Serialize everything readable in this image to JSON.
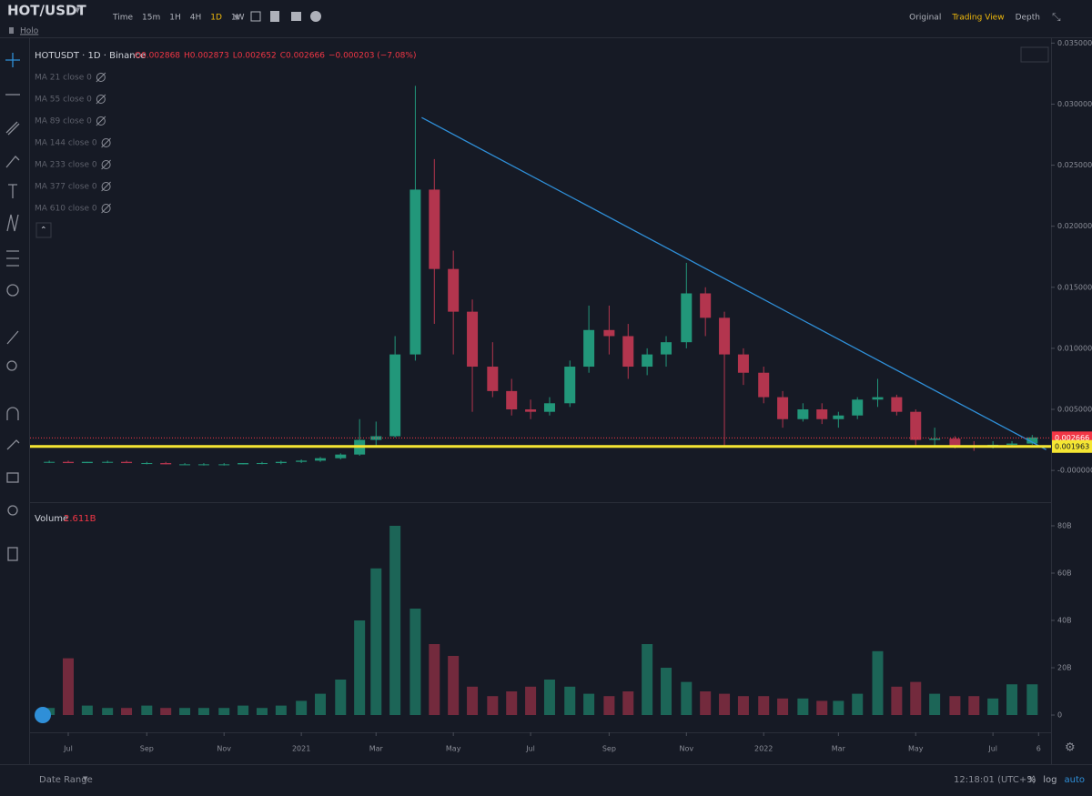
{
  "header": {
    "symbol": "HOT/USDT",
    "name": "Holo",
    "intervals": [
      "Time",
      "15m",
      "1H",
      "4H",
      "1D",
      "1W"
    ],
    "active_interval": 4,
    "views": [
      "Original",
      "Trading View",
      "Depth"
    ],
    "active_view": 1
  },
  "legend": {
    "title": "HOTUSDT · 1D · Binance",
    "ohlc": [
      "O0.002868",
      "H0.002873",
      "L0.002652",
      "C0.002666",
      "−0.000203 (−7.08%)"
    ],
    "indicators": [
      "MA 21 close 0",
      "MA 55 close 0",
      "MA 89 close 0",
      "MA 144 close 0",
      "MA 233 close 0",
      "MA 377 close 0",
      "MA 610 close 0"
    ]
  },
  "chart_data": {
    "type": "candlestick",
    "x": [
      "2020-06-16",
      "2020-07-01",
      "2020-07-16",
      "2020-08-01",
      "2020-08-16",
      "2020-09-01",
      "2020-09-16",
      "2020-10-01",
      "2020-10-16",
      "2020-11-01",
      "2020-11-16",
      "2020-12-01",
      "2020-12-16",
      "2021-01-01",
      "2021-01-16",
      "2021-02-01",
      "2021-02-16",
      "2021-03-01",
      "2021-03-16",
      "2021-04-01",
      "2021-04-16",
      "2021-05-01",
      "2021-05-16",
      "2021-06-01",
      "2021-06-16",
      "2021-07-01",
      "2021-07-16",
      "2021-08-01",
      "2021-08-16",
      "2021-09-01",
      "2021-09-16",
      "2021-10-01",
      "2021-10-16",
      "2021-11-01",
      "2021-11-16",
      "2021-12-01",
      "2021-12-16",
      "2022-01-01",
      "2022-01-16",
      "2022-02-01",
      "2022-02-16",
      "2022-03-01",
      "2022-03-16",
      "2022-04-01",
      "2022-04-16",
      "2022-05-01",
      "2022-05-16",
      "2022-06-01",
      "2022-06-16",
      "2022-07-01",
      "2022-07-16",
      "2022-08-01"
    ],
    "open": [
      0.0007,
      0.0007,
      0.0006,
      0.0007,
      0.0007,
      0.0006,
      0.0006,
      0.0005,
      0.0005,
      0.0005,
      0.0005,
      0.0006,
      0.0006,
      0.0007,
      0.0008,
      0.001,
      0.0013,
      0.0025,
      0.0028,
      0.0095,
      0.023,
      0.0165,
      0.013,
      0.0085,
      0.0065,
      0.005,
      0.0048,
      0.0055,
      0.0085,
      0.0115,
      0.011,
      0.0085,
      0.0095,
      0.0105,
      0.0145,
      0.0125,
      0.0095,
      0.008,
      0.006,
      0.0042,
      0.005,
      0.0042,
      0.0045,
      0.0058,
      0.006,
      0.0048,
      0.0025,
      0.0026,
      0.002,
      0.0019,
      0.0021,
      0.0022
    ],
    "high": [
      0.0008,
      0.0008,
      0.0007,
      0.0008,
      0.0008,
      0.0007,
      0.0007,
      0.0006,
      0.0006,
      0.0006,
      0.0006,
      0.0007,
      0.0008,
      0.0009,
      0.0011,
      0.0014,
      0.0042,
      0.004,
      0.011,
      0.0315,
      0.0255,
      0.018,
      0.014,
      0.0105,
      0.0075,
      0.0058,
      0.006,
      0.009,
      0.0135,
      0.0135,
      0.012,
      0.01,
      0.011,
      0.017,
      0.015,
      0.013,
      0.01,
      0.0085,
      0.0065,
      0.0055,
      0.0055,
      0.0048,
      0.006,
      0.0075,
      0.0062,
      0.005,
      0.0035,
      0.0028,
      0.0024,
      0.0024,
      0.0024,
      0.0029
    ],
    "low": [
      0.0006,
      0.0006,
      0.0006,
      0.0006,
      0.0006,
      0.0005,
      0.0005,
      0.0005,
      0.0004,
      0.0004,
      0.0005,
      0.0005,
      0.0005,
      0.0006,
      0.0007,
      0.0009,
      0.0012,
      0.002,
      0.0027,
      0.009,
      0.012,
      0.0095,
      0.0048,
      0.006,
      0.0045,
      0.0042,
      0.0045,
      0.0052,
      0.008,
      0.0095,
      0.0075,
      0.0078,
      0.0085,
      0.01,
      0.011,
      0.002,
      0.007,
      0.0055,
      0.0035,
      0.004,
      0.0038,
      0.0035,
      0.0042,
      0.0052,
      0.0045,
      0.002,
      0.002,
      0.0018,
      0.0016,
      0.0018,
      0.0019,
      0.0021
    ],
    "close": [
      0.0007,
      0.0006,
      0.0007,
      0.0007,
      0.0006,
      0.0006,
      0.0005,
      0.0005,
      0.0005,
      0.0005,
      0.0006,
      0.0006,
      0.0007,
      0.0008,
      0.001,
      0.0013,
      0.0025,
      0.0028,
      0.0095,
      0.023,
      0.0165,
      0.013,
      0.0085,
      0.0065,
      0.005,
      0.0048,
      0.0055,
      0.0085,
      0.0115,
      0.011,
      0.0085,
      0.0095,
      0.0105,
      0.0145,
      0.0125,
      0.0095,
      0.008,
      0.006,
      0.0042,
      0.005,
      0.0042,
      0.0045,
      0.0058,
      0.006,
      0.0048,
      0.0025,
      0.0026,
      0.002,
      0.0019,
      0.0021,
      0.0022,
      0.0027
    ],
    "colors": {
      "up": "#22977a",
      "down": "#b3354e"
    },
    "ylim": [
      -0.0026,
      0.0354
    ],
    "yticks": [
      {
        "value": 0,
        "label": "-0.000000"
      },
      {
        "value": 0.005,
        "label": "0.005000"
      },
      {
        "value": 0.01,
        "label": "0.010000"
      },
      {
        "value": 0.015,
        "label": "0.015000"
      },
      {
        "value": 0.02,
        "label": "0.020000"
      },
      {
        "value": 0.025,
        "label": "0.025000"
      },
      {
        "value": 0.03,
        "label": "0.030000"
      },
      {
        "value": 0.035,
        "label": "0.035000"
      }
    ],
    "lines": [
      {
        "value": 0.002666,
        "label": "0.002666",
        "color": "#f23645",
        "style": "dotted"
      },
      {
        "value": 0.001963,
        "label": "0.001963",
        "color": "#f5e633",
        "style": "solid"
      }
    ],
    "trendline": {
      "x": [
        "2021-04-06",
        "2022-08-12"
      ],
      "y": [
        0.0289,
        0.0017
      ],
      "color": "#2f8fd8"
    },
    "volume": {
      "title": "Volume",
      "last_label": "2.611B",
      "values": [
        3,
        24,
        4,
        3,
        3,
        4,
        3,
        3,
        3,
        3,
        4,
        3,
        4,
        6,
        9,
        15,
        40,
        62,
        80,
        45,
        30,
        25,
        12,
        8,
        10,
        12,
        15,
        12,
        9,
        8,
        10,
        30,
        20,
        14,
        10,
        9,
        8,
        8,
        7,
        7,
        6,
        6,
        9,
        27,
        12,
        14,
        9,
        8,
        8,
        7,
        13,
        13
      ],
      "ylim": [
        -7.3,
        90
      ],
      "yticks": [
        0,
        {
          "value": 20,
          "label": "20B"
        },
        {
          "value": 40,
          "label": "40B"
        },
        {
          "value": 60,
          "label": "60B"
        },
        {
          "value": 80,
          "label": "80B"
        }
      ]
    },
    "time_axis": [
      {
        "label": "Jul",
        "date": "2020-07-01"
      },
      {
        "label": "Sep",
        "date": "2020-09-01"
      },
      {
        "label": "Nov",
        "date": "2020-11-01"
      },
      {
        "label": "2021",
        "date": "2021-01-01"
      },
      {
        "label": "Mar",
        "date": "2021-03-01"
      },
      {
        "label": "May",
        "date": "2021-05-01"
      },
      {
        "label": "Jul",
        "date": "2021-07-01"
      },
      {
        "label": "Sep",
        "date": "2021-09-01"
      },
      {
        "label": "Nov",
        "date": "2021-11-01"
      },
      {
        "label": "2022",
        "date": "2022-01-01"
      },
      {
        "label": "Mar",
        "date": "2022-03-01"
      },
      {
        "label": "May",
        "date": "2022-05-01"
      },
      {
        "label": "Jul",
        "date": "2022-07-01"
      },
      {
        "label": "6",
        "date": "2022-08-06"
      }
    ]
  },
  "footer": {
    "date_range": "Date Range",
    "clock": "12:18:01 (UTC+3)",
    "options": [
      "%",
      "log",
      "auto"
    ]
  }
}
